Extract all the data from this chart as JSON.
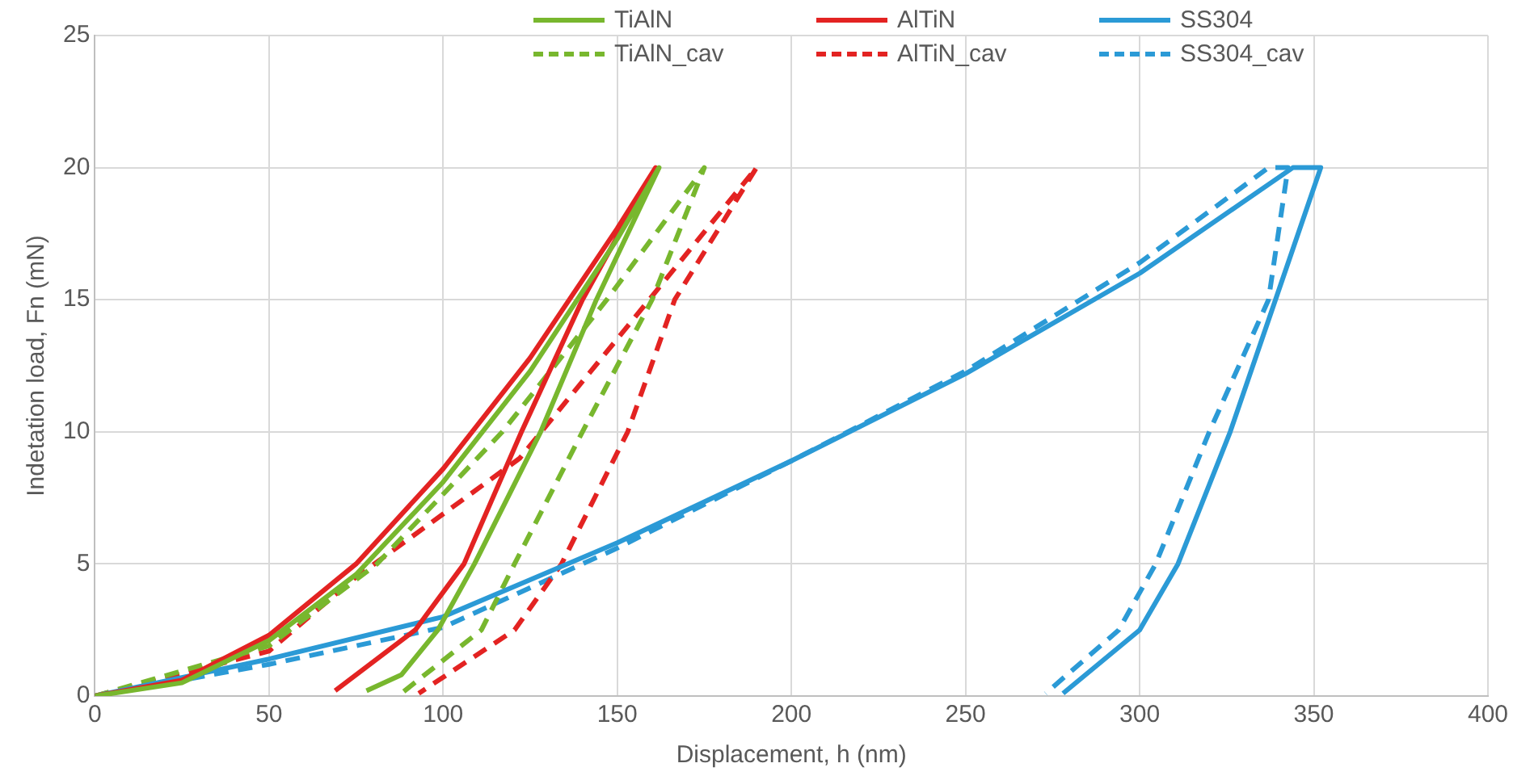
{
  "chart_data": {
    "type": "line",
    "xlabel": "Displacement, h (nm)",
    "ylabel": "Indetation load, Fn (mN)",
    "xlim": [
      0,
      400
    ],
    "xticks": [
      0,
      50,
      100,
      150,
      200,
      250,
      300,
      350,
      400
    ],
    "ylim": [
      0,
      25
    ],
    "yticks": [
      0,
      5,
      10,
      15,
      20,
      25
    ],
    "grid": true,
    "legend": "top",
    "marker": "none",
    "series": [
      {
        "name": "TiAlN",
        "color": "#78b72e",
        "line_style": "solid",
        "x": [
          0,
          25,
          50,
          75,
          100,
          125,
          150,
          162,
          144,
          128,
          109,
          98.5,
          88,
          78
        ],
        "values": [
          0,
          0.5,
          2.1,
          4.6,
          8.1,
          12.3,
          17.3,
          20,
          15,
          10,
          5,
          2.5,
          0.8,
          0.2
        ]
      },
      {
        "name": "AlTiN",
        "color": "#e32322",
        "line_style": "solid",
        "x": [
          0,
          25,
          50,
          75,
          100,
          125,
          150,
          161,
          140,
          122.5,
          106,
          92,
          69
        ],
        "values": [
          0,
          0.6,
          2.3,
          5,
          8.6,
          12.8,
          17.7,
          20,
          15,
          10,
          5,
          2.5,
          0.2
        ]
      },
      {
        "name": "SS304",
        "color": "#2b9ad6",
        "line_style": "solid",
        "x": [
          0,
          50,
          100,
          150,
          200,
          250,
          300,
          344,
          352,
          339,
          326,
          311,
          300,
          278
        ],
        "values": [
          0,
          1.4,
          3,
          5.8,
          8.9,
          12.2,
          16,
          20,
          20,
          15,
          10,
          5,
          2.5,
          0.1
        ]
      },
      {
        "name": "TiAlN_cav",
        "color": "#78b72e",
        "line_style": "dashed",
        "x": [
          0,
          50,
          81,
          117,
          147,
          175,
          160,
          140,
          120.5,
          111,
          88
        ],
        "values": [
          0,
          1.9,
          5,
          10,
          15,
          20,
          15,
          10,
          5,
          2.5,
          0.1
        ]
      },
      {
        "name": "AlTiN_cav",
        "color": "#e32322",
        "line_style": "dashed",
        "x": [
          0,
          50,
          74,
          122,
          153,
          190,
          166.5,
          153,
          134,
          120.5,
          93
        ],
        "values": [
          0,
          1.7,
          4.4,
          9,
          14,
          20,
          15,
          10,
          5,
          2.5,
          0.1
        ]
      },
      {
        "name": "SS304_cav",
        "color": "#2b9ad6",
        "line_style": "dashed",
        "x": [
          0,
          50,
          100,
          150,
          200,
          250,
          300,
          337,
          342.6,
          337,
          320,
          304.6,
          294,
          273
        ],
        "values": [
          0,
          1.2,
          2.6,
          5.6,
          8.9,
          12.3,
          16.4,
          20,
          20,
          15,
          10,
          5,
          2.5,
          0.1
        ]
      }
    ]
  }
}
